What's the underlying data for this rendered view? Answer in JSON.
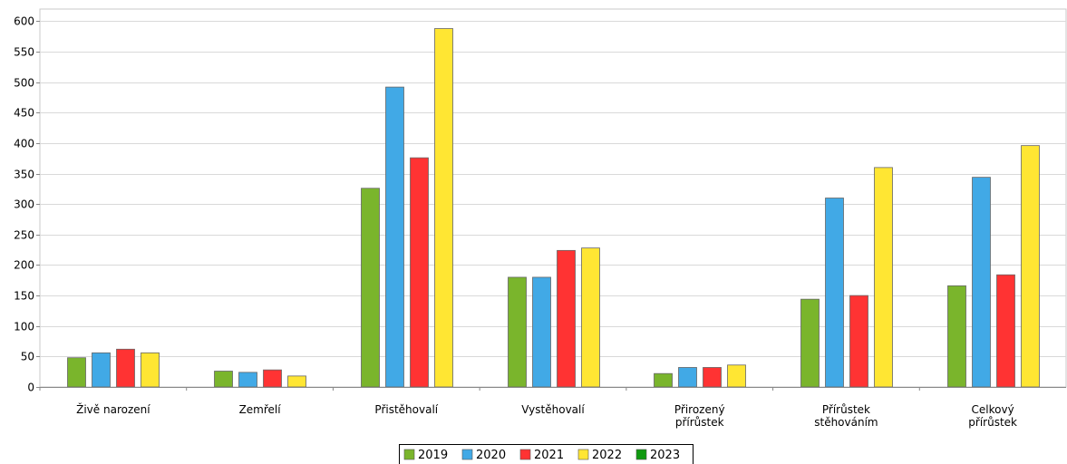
{
  "chart_data": {
    "type": "bar",
    "categories": [
      [
        "Živě narození"
      ],
      [
        "Zemřelí"
      ],
      [
        "Přistěhovalí"
      ],
      [
        "Vystěhovalí"
      ],
      [
        "Přirozený",
        "přírůstek"
      ],
      [
        "Přírůstek",
        "stěhováním"
      ],
      [
        "Celkový",
        "přírůstek"
      ]
    ],
    "series": [
      {
        "name": "2019",
        "color": "#7ab52c",
        "values": [
          48,
          26,
          326,
          180,
          22,
          144,
          166
        ]
      },
      {
        "name": "2020",
        "color": "#41a9e6",
        "values": [
          56,
          24,
          492,
          180,
          32,
          310,
          344
        ]
      },
      {
        "name": "2021",
        "color": "#ff3333",
        "values": [
          62,
          28,
          376,
          224,
          32,
          150,
          184
        ]
      },
      {
        "name": "2022",
        "color": "#ffe633",
        "values": [
          56,
          18,
          588,
          228,
          36,
          360,
          396
        ]
      },
      {
        "name": "2023",
        "color": "#109a10",
        "values": [
          null,
          null,
          null,
          null,
          null,
          null,
          null
        ]
      }
    ],
    "yticks": [
      "0",
      "50",
      "100",
      "150",
      "200",
      "250",
      "300",
      "350",
      "400",
      "450",
      "500",
      "550",
      "600"
    ],
    "ylim": [
      0,
      620
    ],
    "grid": true,
    "legend_position": "bottom-center"
  }
}
